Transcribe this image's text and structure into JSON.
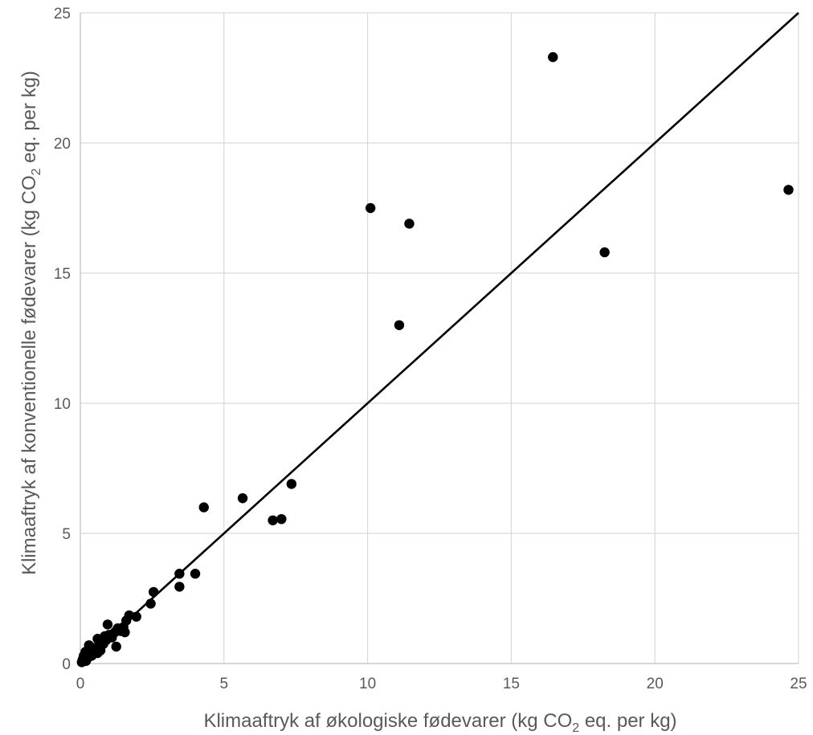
{
  "chart_data": {
    "type": "scatter",
    "title": "",
    "xlabel_parts": [
      "Klimaaftryk af økologiske fødevarer (kg CO",
      "2",
      " eq. per kg)"
    ],
    "ylabel_parts": [
      "Klimaaftryk af konventionelle fødevarer (kg CO",
      "2",
      " eq. per kg)"
    ],
    "xlim": [
      0,
      25
    ],
    "ylim": [
      0,
      25
    ],
    "x_ticks": [
      0,
      5,
      10,
      15,
      20,
      25
    ],
    "y_ticks": [
      0,
      5,
      10,
      15,
      20,
      25
    ],
    "x_tick_labels": [
      "0",
      "5",
      "10",
      "15",
      "20",
      "25"
    ],
    "y_tick_labels": [
      "0",
      "5",
      "10",
      "15",
      "20",
      "25"
    ],
    "grid": true,
    "reference_line": {
      "from": [
        0,
        0
      ],
      "to": [
        25,
        25
      ]
    },
    "colors": {
      "points": "#000000",
      "line": "#000000",
      "grid": "#d9d9d9",
      "text": "#595959"
    },
    "points": [
      {
        "x": 0.05,
        "y": 0.05
      },
      {
        "x": 0.08,
        "y": 0.15
      },
      {
        "x": 0.1,
        "y": 0.1
      },
      {
        "x": 0.12,
        "y": 0.3
      },
      {
        "x": 0.15,
        "y": 0.2
      },
      {
        "x": 0.18,
        "y": 0.45
      },
      {
        "x": 0.2,
        "y": 0.1
      },
      {
        "x": 0.25,
        "y": 0.35
      },
      {
        "x": 0.3,
        "y": 0.25
      },
      {
        "x": 0.3,
        "y": 0.7
      },
      {
        "x": 0.35,
        "y": 0.4
      },
      {
        "x": 0.4,
        "y": 0.3
      },
      {
        "x": 0.45,
        "y": 0.6
      },
      {
        "x": 0.5,
        "y": 0.45
      },
      {
        "x": 0.55,
        "y": 0.55
      },
      {
        "x": 0.6,
        "y": 0.4
      },
      {
        "x": 0.6,
        "y": 0.95
      },
      {
        "x": 0.65,
        "y": 0.7
      },
      {
        "x": 0.7,
        "y": 0.5
      },
      {
        "x": 0.75,
        "y": 0.85
      },
      {
        "x": 0.8,
        "y": 0.75
      },
      {
        "x": 0.85,
        "y": 1.05
      },
      {
        "x": 0.9,
        "y": 0.9
      },
      {
        "x": 0.95,
        "y": 1.5
      },
      {
        "x": 1.0,
        "y": 1.1
      },
      {
        "x": 1.1,
        "y": 1.0
      },
      {
        "x": 1.2,
        "y": 1.2
      },
      {
        "x": 1.25,
        "y": 0.65
      },
      {
        "x": 1.3,
        "y": 1.35
      },
      {
        "x": 1.4,
        "y": 1.25
      },
      {
        "x": 1.5,
        "y": 1.4
      },
      {
        "x": 1.55,
        "y": 1.2
      },
      {
        "x": 1.6,
        "y": 1.65
      },
      {
        "x": 1.7,
        "y": 1.85
      },
      {
        "x": 1.95,
        "y": 1.8
      },
      {
        "x": 2.45,
        "y": 2.3
      },
      {
        "x": 2.55,
        "y": 2.75
      },
      {
        "x": 3.45,
        "y": 2.95
      },
      {
        "x": 3.45,
        "y": 3.45
      },
      {
        "x": 4.0,
        "y": 3.45
      },
      {
        "x": 4.3,
        "y": 6.0
      },
      {
        "x": 5.65,
        "y": 6.35
      },
      {
        "x": 6.7,
        "y": 5.5
      },
      {
        "x": 7.0,
        "y": 5.55
      },
      {
        "x": 7.35,
        "y": 6.9
      },
      {
        "x": 10.1,
        "y": 17.5
      },
      {
        "x": 11.1,
        "y": 13.0
      },
      {
        "x": 11.45,
        "y": 16.9
      },
      {
        "x": 16.45,
        "y": 23.3
      },
      {
        "x": 18.25,
        "y": 15.8
      },
      {
        "x": 24.65,
        "y": 18.2
      }
    ]
  }
}
